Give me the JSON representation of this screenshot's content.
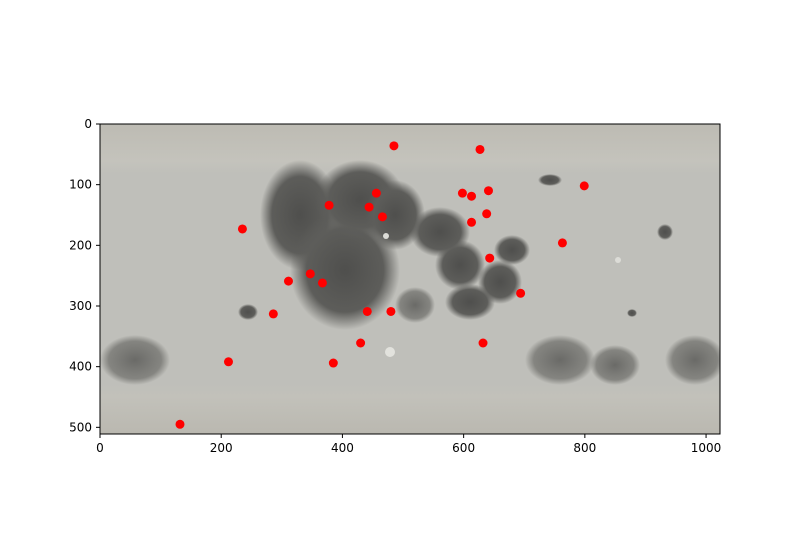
{
  "chart_data": {
    "type": "scatter",
    "title": "",
    "xlabel": "",
    "ylabel": "",
    "xlim": [
      0,
      1023
    ],
    "ylim": [
      511,
      0
    ],
    "y_inverted": true,
    "grid": false,
    "background": "lunar surface map image",
    "marker_color": "#ff0000",
    "x_ticks": [
      0,
      200,
      400,
      600,
      800,
      1000
    ],
    "y_ticks": [
      0,
      100,
      200,
      300,
      400,
      500
    ],
    "points": [
      {
        "x": 485,
        "y": 36
      },
      {
        "x": 627,
        "y": 42
      },
      {
        "x": 799,
        "y": 102
      },
      {
        "x": 456,
        "y": 114
      },
      {
        "x": 598,
        "y": 114
      },
      {
        "x": 613,
        "y": 119
      },
      {
        "x": 641,
        "y": 110
      },
      {
        "x": 378,
        "y": 134
      },
      {
        "x": 444,
        "y": 137
      },
      {
        "x": 466,
        "y": 153
      },
      {
        "x": 638,
        "y": 148
      },
      {
        "x": 613,
        "y": 162
      },
      {
        "x": 235,
        "y": 173
      },
      {
        "x": 763,
        "y": 196
      },
      {
        "x": 643,
        "y": 221
      },
      {
        "x": 347,
        "y": 247
      },
      {
        "x": 311,
        "y": 259
      },
      {
        "x": 367,
        "y": 262
      },
      {
        "x": 694,
        "y": 279
      },
      {
        "x": 441,
        "y": 309
      },
      {
        "x": 480,
        "y": 309
      },
      {
        "x": 286,
        "y": 313
      },
      {
        "x": 430,
        "y": 361
      },
      {
        "x": 632,
        "y": 361
      },
      {
        "x": 212,
        "y": 392
      },
      {
        "x": 385,
        "y": 394
      },
      {
        "x": 132,
        "y": 495
      }
    ]
  },
  "colors": {
    "marker": "#ff0000",
    "mare_dark": "#5a5a58",
    "highland_light": "#c8c8c3",
    "polar_band": "#b8b6ae"
  }
}
